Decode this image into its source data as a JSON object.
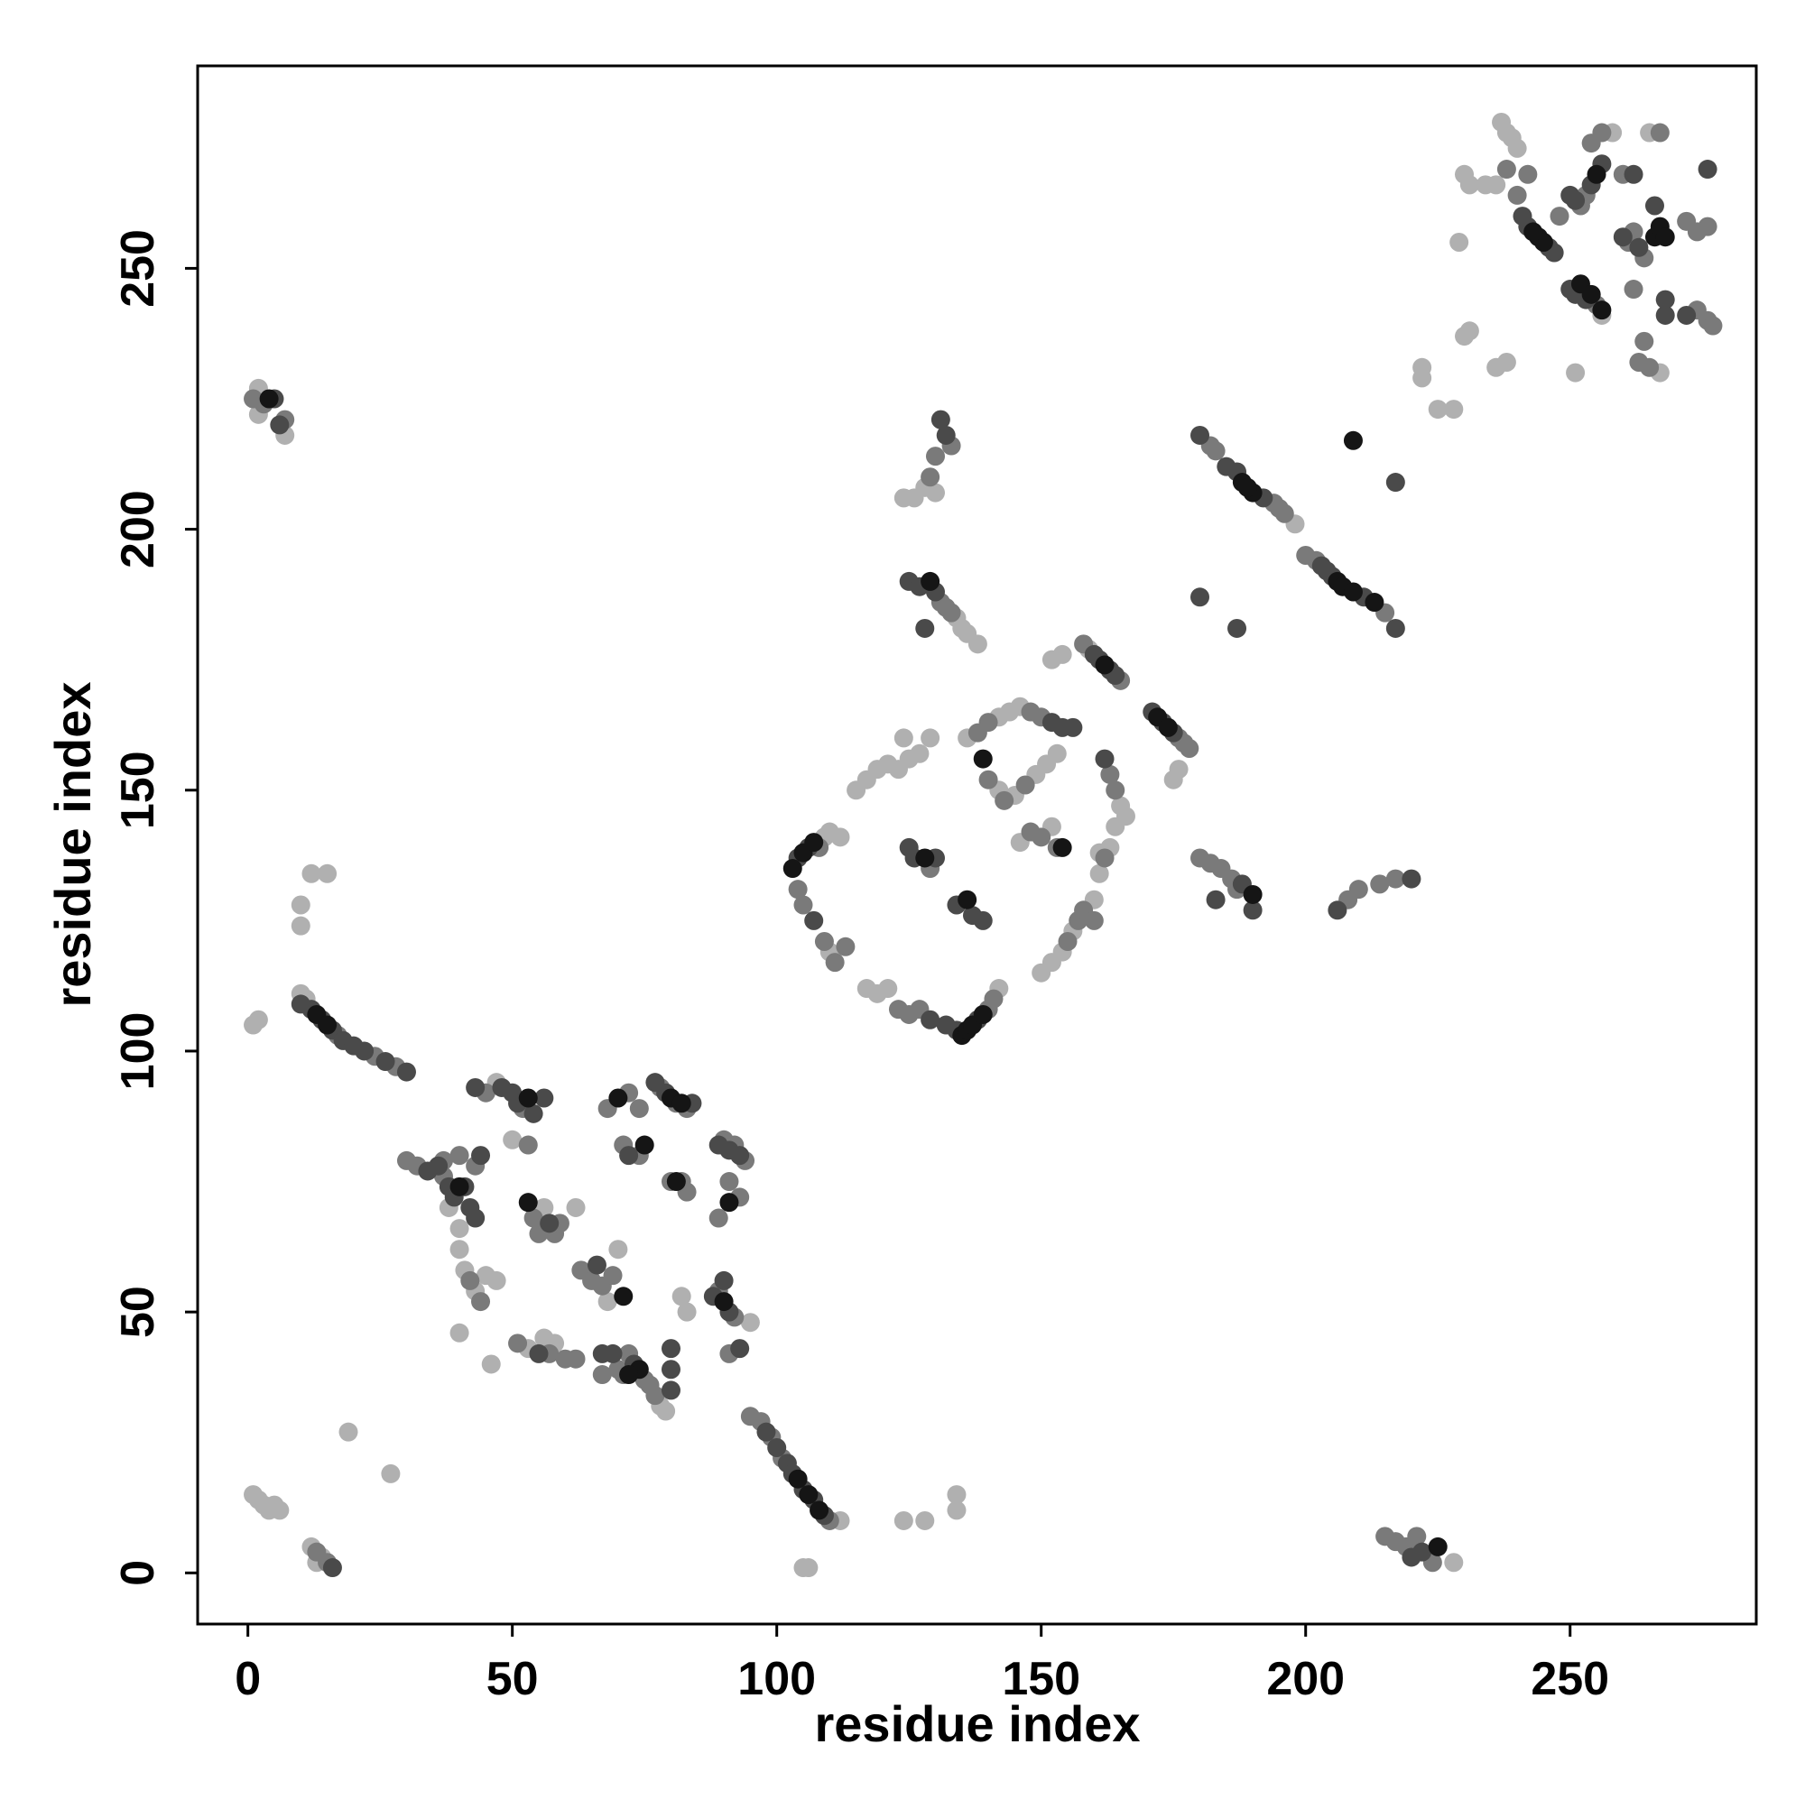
{
  "chart_data": {
    "type": "scatter",
    "x_label": "residue index",
    "y_label": "residue index",
    "xlim": [
      -9.5,
      285.2
    ],
    "ylim": [
      -9.8,
      288.8
    ],
    "xticks": [
      0,
      50,
      100,
      150,
      200,
      250
    ],
    "yticks": [
      0,
      50,
      100,
      150,
      200,
      250
    ],
    "grid": false,
    "series": [
      {
        "color": "#b0b0b0",
        "x": [
          2,
          2,
          7,
          1,
          2,
          10,
          10,
          12,
          15,
          10,
          11,
          19,
          27,
          1,
          2,
          3,
          4,
          5,
          6,
          12,
          13,
          14,
          38,
          40,
          40,
          41,
          43,
          45,
          47,
          40,
          46,
          47,
          50,
          56,
          62,
          53,
          56,
          58,
          68,
          70,
          78,
          79,
          82,
          83,
          95,
          112,
          105,
          106,
          124,
          128,
          134,
          134,
          109,
          110,
          112,
          110,
          117,
          119,
          121,
          142,
          115,
          117,
          119,
          121,
          123,
          125,
          127,
          129,
          124,
          136,
          142,
          144,
          146,
          142,
          145,
          149,
          151,
          153,
          152,
          146,
          150,
          152,
          154,
          156,
          160,
          161,
          163,
          161,
          165,
          166,
          164,
          152,
          154,
          159,
          175,
          176,
          128,
          126,
          124,
          130,
          134,
          135,
          136,
          138,
          198,
          228,
          222,
          222,
          225,
          228,
          230,
          231,
          236,
          238,
          229,
          230,
          231,
          234,
          236,
          237,
          238,
          239,
          240,
          256,
          251,
          258,
          267,
          265
        ],
        "values": [
          227,
          222,
          218,
          105,
          106,
          128,
          124,
          134,
          134,
          111,
          110,
          27,
          19,
          15,
          14,
          13,
          12,
          13,
          12,
          5,
          2,
          3,
          70,
          66,
          62,
          58,
          54,
          57,
          56,
          46,
          40,
          94,
          83,
          70,
          70,
          43,
          45,
          44,
          52,
          62,
          32,
          31,
          53,
          50,
          48,
          10,
          1,
          1,
          10,
          10,
          15,
          12,
          141,
          142,
          141,
          119,
          112,
          111,
          112,
          112,
          150,
          152,
          154,
          155,
          154,
          156,
          157,
          160,
          160,
          160,
          164,
          165,
          166,
          150,
          149,
          153,
          155,
          157,
          143,
          140,
          115,
          117,
          119,
          123,
          129,
          134,
          139,
          138,
          147,
          145,
          143,
          175,
          176,
          177,
          152,
          154,
          208,
          206,
          206,
          207,
          183,
          181,
          180,
          178,
          201,
          2,
          229,
          231,
          223,
          223,
          237,
          238,
          231,
          232,
          255,
          268,
          266,
          266,
          266,
          278,
          276,
          275,
          273,
          241,
          230,
          276,
          230,
          276
        ]
      },
      {
        "color": "#7a7a7a",
        "x": [
          3,
          7,
          1,
          17,
          24,
          28,
          15,
          13,
          30,
          32,
          37,
          40,
          43,
          37,
          42,
          44,
          45,
          52,
          54,
          55,
          58,
          59,
          53,
          57,
          60,
          62,
          51,
          63,
          65,
          67,
          69,
          70,
          71,
          75,
          76,
          77,
          67,
          72,
          68,
          72,
          74,
          71,
          74,
          78,
          81,
          83,
          80,
          83,
          82,
          90,
          92,
          94,
          89,
          91,
          93,
          89,
          92,
          91,
          95,
          97,
          99,
          101,
          110,
          108,
          104,
          105,
          109,
          111,
          113,
          123,
          125,
          127,
          140,
          141,
          129,
          138,
          140,
          148,
          150,
          140,
          143,
          147,
          148,
          150,
          153,
          155,
          157,
          158,
          160,
          162,
          163,
          164,
          165,
          158,
          176,
          177,
          178,
          133,
          130,
          129,
          131,
          132,
          133,
          182,
          183,
          194,
          195,
          196,
          200,
          202,
          215,
          180,
          182,
          184,
          186,
          187,
          208,
          210,
          214,
          217,
          215,
          217,
          219,
          221,
          224,
          240,
          238,
          248,
          242,
          252,
          253,
          255,
          254,
          256,
          260,
          261,
          262,
          264,
          262,
          264,
          263,
          265,
          267,
          272,
          274,
          276,
          274,
          276,
          277
        ],
        "values": [
          224,
          221,
          225,
          103,
          99,
          97,
          2,
          4,
          79,
          78,
          76,
          80,
          78,
          79,
          56,
          52,
          92,
          89,
          68,
          65,
          65,
          67,
          82,
          42,
          41,
          41,
          44,
          58,
          56,
          55,
          57,
          39,
          38,
          37,
          36,
          34,
          38,
          42,
          89,
          92,
          89,
          82,
          80,
          93,
          90,
          89,
          75,
          73,
          75,
          83,
          82,
          79,
          68,
          75,
          72,
          54,
          49,
          42,
          30,
          29,
          26,
          22,
          10,
          139,
          131,
          128,
          121,
          117,
          120,
          108,
          107,
          108,
          108,
          110,
          135,
          161,
          163,
          165,
          164,
          152,
          148,
          151,
          142,
          141,
          139,
          121,
          125,
          127,
          125,
          137,
          153,
          150,
          171,
          178,
          160,
          159,
          158,
          216,
          214,
          210,
          186,
          185,
          184,
          216,
          215,
          205,
          204,
          203,
          195,
          194,
          184,
          137,
          136,
          135,
          133,
          131,
          129,
          131,
          132,
          133,
          7,
          6,
          5,
          7,
          2,
          264,
          269,
          260,
          268,
          262,
          264,
          243,
          274,
          276,
          268,
          255,
          257,
          252,
          246,
          236,
          232,
          231,
          276,
          259,
          257,
          258,
          242,
          240,
          239
        ]
      },
      {
        "color": "#4a4a4a",
        "x": [
          5,
          6,
          10,
          12,
          14,
          16,
          18,
          20,
          22,
          26,
          30,
          16,
          34,
          36,
          38,
          39,
          41,
          42,
          43,
          44,
          43,
          48,
          50,
          51,
          54,
          56,
          57,
          55,
          67,
          69,
          73,
          80,
          80,
          80,
          66,
          72,
          77,
          79,
          84,
          89,
          91,
          93,
          88,
          91,
          93,
          90,
          98,
          100,
          102,
          103,
          105,
          107,
          109,
          104,
          106,
          107,
          125,
          126,
          130,
          134,
          137,
          139,
          129,
          132,
          134,
          138,
          152,
          154,
          156,
          162,
          161,
          163,
          164,
          160,
          171,
          173,
          175,
          131,
          132,
          125,
          127,
          130,
          128,
          180,
          185,
          187,
          192,
          180,
          187,
          203,
          204,
          205,
          211,
          217,
          217,
          183,
          190,
          188,
          206,
          220,
          220,
          222,
          241,
          242,
          246,
          247,
          250,
          251,
          253,
          250,
          251,
          254,
          256,
          262,
          260,
          263,
          266,
          268,
          268,
          272,
          276
        ],
        "values": [
          225,
          220,
          109,
          108,
          106,
          104,
          102,
          101,
          100,
          98,
          96,
          1,
          77,
          78,
          74,
          72,
          74,
          70,
          68,
          80,
          93,
          93,
          92,
          90,
          88,
          91,
          67,
          42,
          42,
          42,
          40,
          39,
          43,
          35,
          59,
          80,
          94,
          92,
          90,
          82,
          81,
          80,
          53,
          50,
          43,
          56,
          27,
          24,
          21,
          19,
          16,
          14,
          11,
          137,
          139,
          125,
          139,
          137,
          137,
          128,
          126,
          125,
          106,
          105,
          104,
          106,
          163,
          162,
          162,
          156,
          175,
          173,
          172,
          176,
          165,
          163,
          161,
          221,
          218,
          190,
          189,
          188,
          181,
          218,
          212,
          211,
          206,
          187,
          181,
          193,
          192,
          191,
          187,
          181,
          209,
          129,
          127,
          132,
          127,
          133,
          3,
          4,
          260,
          258,
          254,
          253,
          246,
          245,
          244,
          264,
          263,
          266,
          270,
          268,
          256,
          254,
          262,
          244,
          241,
          241,
          269
        ]
      },
      {
        "color": "#151515",
        "x": [
          4,
          13,
          15,
          40,
          53,
          53,
          71,
          70,
          75,
          74,
          72,
          80,
          82,
          81,
          91,
          90,
          104,
          106,
          108,
          105,
          107,
          103,
          135,
          136,
          137,
          139,
          128,
          136,
          139,
          154,
          162,
          172,
          174,
          129,
          188,
          190,
          189,
          206,
          207,
          209,
          213,
          209,
          190,
          225,
          244,
          245,
          243,
          252,
          254,
          256,
          255,
          266,
          267,
          268
        ],
        "values": [
          225,
          107,
          105,
          74,
          91,
          71,
          53,
          91,
          82,
          39,
          38,
          91,
          90,
          75,
          71,
          52,
          18,
          15,
          12,
          138,
          140,
          135,
          103,
          104,
          105,
          107,
          137,
          129,
          156,
          139,
          174,
          164,
          162,
          190,
          209,
          207,
          208,
          190,
          189,
          188,
          186,
          217,
          130,
          5,
          256,
          255,
          257,
          247,
          245,
          242,
          268,
          256,
          258,
          256
        ]
      }
    ]
  }
}
